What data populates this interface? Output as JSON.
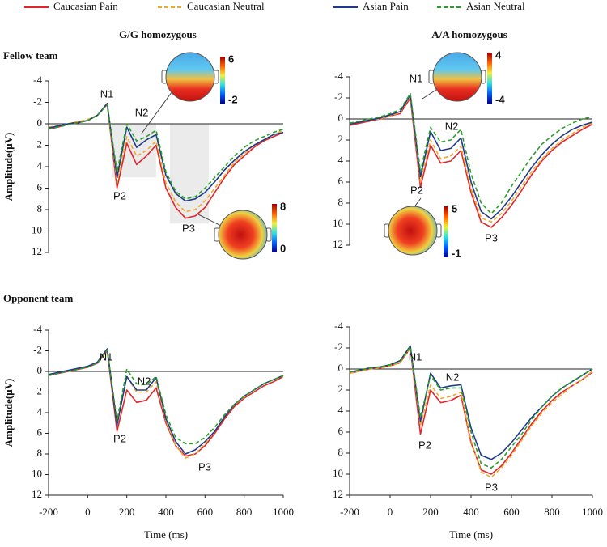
{
  "chart_data": [
    {
      "type": "line",
      "title": "G/G homozygous",
      "row_label": "Fellow team",
      "ylabel": "Amplitude(μV)",
      "x": [
        -200,
        -150,
        -100,
        -50,
        0,
        50,
        100,
        150,
        200,
        250,
        300,
        350,
        400,
        450,
        500,
        550,
        600,
        650,
        700,
        750,
        800,
        850,
        900,
        950,
        1000
      ],
      "xlim": [
        -200,
        1000
      ],
      "ylim": [
        12,
        -4
      ],
      "yticks": [
        -4,
        -2,
        0,
        2,
        4,
        6,
        8,
        10,
        12
      ],
      "series": [
        {
          "name": "Caucasian Pain",
          "color": "#e0262b",
          "dash": false,
          "values": [
            0.5,
            0.3,
            0,
            -0.2,
            -0.3,
            -0.8,
            -1.8,
            6.0,
            1.8,
            3.8,
            3.0,
            2.0,
            6.0,
            7.8,
            8.8,
            8.6,
            7.8,
            6.4,
            5.0,
            3.8,
            3.0,
            2.2,
            1.6,
            1.2,
            0.8
          ]
        },
        {
          "name": "Caucasian Neutral",
          "color": "#f0a830",
          "dash": true,
          "values": [
            0.3,
            0.2,
            0,
            -0.2,
            -0.4,
            -0.8,
            -1.8,
            5.5,
            1.2,
            3.0,
            2.5,
            1.6,
            5.5,
            7.3,
            8.2,
            8.0,
            7.2,
            6.0,
            4.8,
            3.6,
            2.8,
            2.0,
            1.5,
            1.0,
            0.6
          ]
        },
        {
          "name": "Asian Pain",
          "color": "#1f3a8a",
          "dash": false,
          "values": [
            0.4,
            0.2,
            0,
            -0.1,
            -0.3,
            -0.8,
            -1.9,
            5.0,
            0.3,
            2.2,
            1.5,
            1.0,
            4.8,
            6.5,
            7.2,
            7.0,
            6.4,
            5.4,
            4.3,
            3.4,
            2.6,
            2.0,
            1.5,
            1.0,
            0.8
          ]
        },
        {
          "name": "Asian Neutral",
          "color": "#2aa02a",
          "dash": true,
          "values": [
            0.5,
            0.3,
            0.1,
            -0.1,
            -0.3,
            -0.8,
            -1.8,
            4.5,
            0.0,
            1.6,
            1.2,
            0.6,
            4.5,
            6.3,
            7.0,
            6.8,
            6.0,
            5.0,
            4.0,
            3.0,
            2.2,
            1.6,
            1.2,
            0.8,
            0.5
          ]
        }
      ],
      "annotations": [
        "N1",
        "N2",
        "P2",
        "P3"
      ],
      "topomaps": [
        {
          "max": 6,
          "min": -2
        },
        {
          "max": 8,
          "min": 0
        }
      ]
    },
    {
      "type": "line",
      "title": "A/A homozygous",
      "x": [
        -200,
        -150,
        -100,
        -50,
        0,
        50,
        100,
        150,
        200,
        250,
        300,
        350,
        400,
        450,
        500,
        550,
        600,
        650,
        700,
        750,
        800,
        850,
        900,
        950,
        1000
      ],
      "xlim": [
        -200,
        1000
      ],
      "ylim": [
        12,
        -4
      ],
      "yticks": [
        -4,
        -2,
        0,
        2,
        4,
        6,
        8,
        10,
        12
      ],
      "series": [
        {
          "name": "Caucasian Pain",
          "color": "#e0262b",
          "dash": false,
          "values": [
            0.6,
            0.4,
            0.2,
            0,
            -0.3,
            -0.5,
            -2.0,
            6.5,
            2.5,
            4.2,
            4.0,
            3.0,
            7.0,
            9.8,
            10.3,
            9.4,
            8.2,
            6.8,
            5.3,
            4.0,
            3.0,
            2.2,
            1.6,
            1.0,
            0.5
          ]
        },
        {
          "name": "Caucasian Neutral",
          "color": "#f0a830",
          "dash": true,
          "values": [
            0.5,
            0.3,
            0.1,
            0,
            -0.3,
            -0.6,
            -2.2,
            6.0,
            2.0,
            3.8,
            3.5,
            2.6,
            6.6,
            9.4,
            9.8,
            9.0,
            7.8,
            6.4,
            5.0,
            3.8,
            2.8,
            2.0,
            1.4,
            0.8,
            0.4
          ]
        },
        {
          "name": "Asian Pain",
          "color": "#1f3a8a",
          "dash": false,
          "values": [
            0.5,
            0.3,
            0.1,
            -0.1,
            -0.4,
            -0.7,
            -2.3,
            5.5,
            1.2,
            3.0,
            2.8,
            1.8,
            6.0,
            8.8,
            9.5,
            8.6,
            7.4,
            6.0,
            4.6,
            3.4,
            2.4,
            1.6,
            1.0,
            0.6,
            0.3
          ]
        },
        {
          "name": "Asian Neutral",
          "color": "#2aa02a",
          "dash": true,
          "values": [
            0.4,
            0.2,
            0,
            -0.2,
            -0.5,
            -0.9,
            -2.4,
            5.0,
            0.8,
            2.2,
            2.0,
            1.0,
            5.2,
            8.0,
            9.0,
            8.0,
            6.4,
            5.0,
            3.6,
            2.4,
            1.6,
            0.9,
            0.4,
            0,
            -0.2
          ]
        }
      ],
      "annotations": [
        "N1",
        "N2",
        "P2",
        "P3"
      ],
      "topomaps": [
        {
          "max": 4,
          "min": -4
        },
        {
          "max": 5,
          "min": -1
        }
      ]
    },
    {
      "type": "line",
      "row_label": "Opponent team",
      "ylabel": "Amplitude(μV)",
      "xlabel": "Time (ms)",
      "x": [
        -200,
        -150,
        -100,
        -50,
        0,
        50,
        100,
        150,
        200,
        250,
        300,
        350,
        400,
        450,
        500,
        550,
        600,
        650,
        700,
        750,
        800,
        850,
        900,
        950,
        1000
      ],
      "xlim": [
        -200,
        1000
      ],
      "ylim": [
        12,
        -4
      ],
      "yticks": [
        -4,
        -2,
        0,
        2,
        4,
        6,
        8,
        10,
        12
      ],
      "xticks": [
        -200,
        0,
        200,
        400,
        600,
        800,
        1000
      ],
      "series": [
        {
          "name": "Caucasian Pain",
          "color": "#e0262b",
          "dash": false,
          "values": [
            0.3,
            0.2,
            0,
            -0.2,
            -0.4,
            -0.8,
            -2.0,
            5.8,
            1.8,
            3.0,
            2.8,
            1.6,
            5.0,
            7.2,
            8.2,
            8.0,
            7.2,
            6.0,
            4.6,
            3.4,
            2.6,
            2.0,
            1.4,
            1.0,
            0.5
          ]
        },
        {
          "name": "Caucasian Neutral",
          "color": "#f0a830",
          "dash": true,
          "values": [
            0.4,
            0.2,
            0,
            -0.2,
            -0.4,
            -0.8,
            -2.0,
            5.0,
            0.5,
            2.0,
            2.0,
            1.0,
            4.8,
            7.2,
            8.4,
            8.0,
            7.0,
            5.8,
            4.4,
            3.2,
            2.5,
            1.8,
            1.2,
            0.8,
            0.5
          ]
        },
        {
          "name": "Asian Pain",
          "color": "#1f3a8a",
          "dash": false,
          "values": [
            0.3,
            0.1,
            -0.1,
            -0.3,
            -0.5,
            -0.9,
            -2.2,
            5.2,
            0.5,
            1.8,
            1.8,
            0.6,
            4.6,
            6.8,
            8.0,
            7.6,
            6.8,
            5.8,
            4.4,
            3.2,
            2.4,
            1.8,
            1.2,
            0.8,
            0.4
          ]
        },
        {
          "name": "Asian Neutral",
          "color": "#2aa02a",
          "dash": true,
          "values": [
            0.4,
            0.2,
            0,
            -0.2,
            -0.4,
            -0.8,
            -2.1,
            4.8,
            -0.2,
            1.2,
            1.3,
            0.5,
            4.2,
            6.4,
            7.0,
            7.0,
            6.4,
            5.4,
            4.2,
            3.2,
            2.4,
            1.8,
            1.2,
            0.8,
            0.4
          ]
        }
      ],
      "annotations": [
        "N1",
        "N2",
        "P2",
        "P3"
      ]
    },
    {
      "type": "line",
      "xlabel": "Time (ms)",
      "x": [
        -200,
        -150,
        -100,
        -50,
        0,
        50,
        100,
        150,
        200,
        250,
        300,
        350,
        400,
        450,
        500,
        550,
        600,
        650,
        700,
        750,
        800,
        850,
        900,
        950,
        1000
      ],
      "xlim": [
        -200,
        1000
      ],
      "ylim": [
        12,
        -4
      ],
      "yticks": [
        -4,
        -2,
        0,
        2,
        4,
        6,
        8,
        10,
        12
      ],
      "xticks": [
        -200,
        0,
        200,
        400,
        600,
        800,
        1000
      ],
      "series": [
        {
          "name": "Caucasian Pain",
          "color": "#e0262b",
          "dash": false,
          "values": [
            0.4,
            0.2,
            0,
            -0.1,
            -0.3,
            -0.6,
            -2.0,
            6.2,
            2.0,
            3.2,
            3.0,
            2.5,
            7.0,
            9.6,
            10.0,
            9.2,
            8.0,
            6.6,
            5.2,
            4.0,
            3.0,
            2.2,
            1.6,
            1.0,
            0.3
          ]
        },
        {
          "name": "Caucasian Neutral",
          "color": "#f0a830",
          "dash": true,
          "values": [
            0.4,
            0.2,
            0,
            -0.1,
            -0.3,
            -0.6,
            -2.0,
            5.4,
            1.5,
            2.8,
            2.6,
            2.2,
            6.8,
            9.8,
            10.3,
            9.4,
            8.2,
            6.8,
            5.4,
            4.2,
            3.2,
            2.4,
            1.6,
            1.0,
            0.2
          ]
        },
        {
          "name": "Asian Pain",
          "color": "#1f3a8a",
          "dash": false,
          "values": [
            0.3,
            0.1,
            -0.1,
            -0.2,
            -0.4,
            -0.8,
            -2.2,
            5.0,
            0.4,
            1.8,
            1.6,
            1.5,
            5.6,
            8.2,
            8.6,
            8.0,
            7.0,
            5.8,
            4.6,
            3.6,
            2.6,
            1.8,
            1.2,
            0.6,
            0
          ]
        },
        {
          "name": "Asian Neutral",
          "color": "#2aa02a",
          "dash": true,
          "values": [
            0.3,
            0.1,
            -0.1,
            -0.2,
            -0.4,
            -0.7,
            -2.1,
            4.6,
            0.6,
            2.0,
            1.8,
            1.8,
            6.0,
            9.0,
            9.4,
            8.6,
            7.4,
            6.2,
            4.8,
            3.6,
            2.6,
            1.8,
            1.2,
            0.6,
            0
          ]
        }
      ],
      "annotations": [
        "N1",
        "N2",
        "P2",
        "P3"
      ]
    }
  ]
}
